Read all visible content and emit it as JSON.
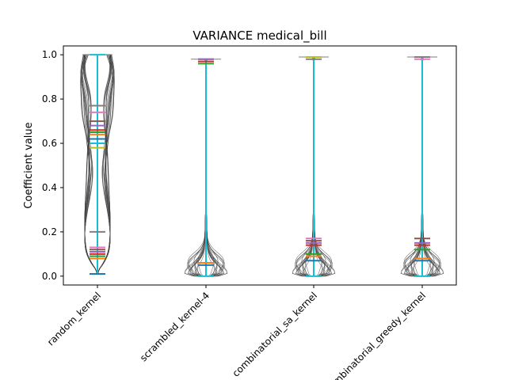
{
  "chart_data": {
    "type": "violin",
    "title": "VARIANCE medical_bill",
    "xlabel": "",
    "ylabel": "Coefficient value",
    "ylim": [
      -0.04,
      1.04
    ],
    "yticks": [
      "0.0",
      "0.2",
      "0.4",
      "0.6",
      "0.8",
      "1.0"
    ],
    "categories": [
      "random_kernel",
      "scrambled_kernel-4",
      "combinatorial_sa_kernel",
      "combinatorial_greedy_kernel"
    ],
    "violins": [
      {
        "category": "random_kernel",
        "min": 0.01,
        "max": 1.0,
        "medians": [
          0.01,
          0.08,
          0.09,
          0.1,
          0.11,
          0.12,
          0.13,
          0.2,
          0.58,
          0.6,
          0.62,
          0.64,
          0.65,
          0.66,
          0.68,
          0.7,
          0.74,
          0.77
        ],
        "shape": "wide-multimodal"
      },
      {
        "category": "scrambled_kernel-4",
        "min": 0.0,
        "max": 0.98,
        "medians": [
          0.05,
          0.06,
          0.96,
          0.97,
          0.98
        ],
        "shape": "bottom-heavy"
      },
      {
        "category": "combinatorial_sa_kernel",
        "min": 0.0,
        "max": 0.99,
        "medians": [
          0.07,
          0.09,
          0.1,
          0.14,
          0.15,
          0.16,
          0.17,
          0.98,
          0.99
        ],
        "shape": "bottom-heavy"
      },
      {
        "category": "combinatorial_greedy_kernel",
        "min": 0.0,
        "max": 0.99,
        "medians": [
          0.07,
          0.08,
          0.12,
          0.14,
          0.15,
          0.17,
          0.98,
          0.99
        ],
        "shape": "bottom-heavy"
      }
    ],
    "colors": [
      "#1f77b4",
      "#ff7f0e",
      "#2ca02c",
      "#d62728",
      "#9467bd",
      "#8c564b",
      "#e377c2",
      "#7f7f7f",
      "#bcbd22",
      "#17becf"
    ],
    "grid": false,
    "legend": "none"
  }
}
